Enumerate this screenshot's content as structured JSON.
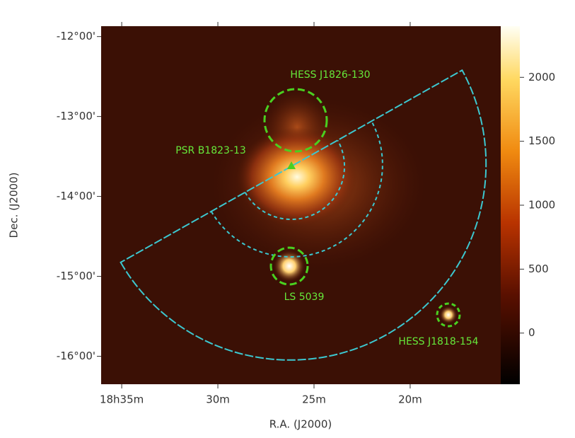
{
  "chart_data": {
    "type": "skymap",
    "xlabel": "R.A. (J2000)",
    "ylabel": "Dec. (J2000)",
    "xlim": [
      36.07,
      15.29
    ],
    "xticks": [
      {
        "value": 35,
        "label": "18h35m"
      },
      {
        "value": 30,
        "label": "30m"
      },
      {
        "value": 25,
        "label": "25m"
      },
      {
        "value": 20,
        "label": "20m"
      }
    ],
    "ylim": [
      -16.35,
      -11.87
    ],
    "yticks": [
      {
        "value": -12,
        "label": "-12°00'"
      },
      {
        "value": -13,
        "label": "-13°00'"
      },
      {
        "value": -14,
        "label": "-14°00'"
      },
      {
        "value": -15,
        "label": "-15°00'"
      },
      {
        "value": -16,
        "label": "-16°00'"
      }
    ],
    "clim": [
      -400,
      2400
    ],
    "cticks": [
      0,
      500,
      1000,
      1500,
      2000
    ],
    "annotations": [
      "HESS J1826-130",
      "PSR B1823-13",
      "LS 5039",
      "HESS J1818-154"
    ]
  }
}
